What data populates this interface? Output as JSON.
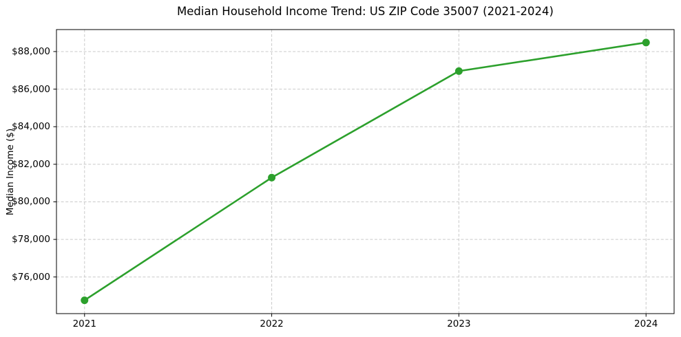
{
  "chart_data": {
    "type": "line",
    "title": "Median Household Income Trend: US ZIP Code 35007 (2021-2024)",
    "xlabel": "",
    "ylabel": "Median Income ($)",
    "x": [
      2021,
      2022,
      2023,
      2024
    ],
    "x_tick_labels": [
      "2021",
      "2022",
      "2023",
      "2024"
    ],
    "series": [
      {
        "name": "Median household income",
        "values": [
          74760,
          81290,
          86960,
          88480
        ]
      }
    ],
    "y_ticks": [
      76000,
      78000,
      80000,
      82000,
      84000,
      86000,
      88000
    ],
    "y_tick_labels": [
      "$76,000",
      "$78,000",
      "$80,000",
      "$82,000",
      "$84,000",
      "$86,000",
      "$88,000"
    ],
    "xlim": [
      2020.85,
      2024.15
    ],
    "ylim": [
      74050,
      89170
    ],
    "grid": true,
    "grid_style": "dashed",
    "legend": "none",
    "colors": {
      "line": "#2ca02c",
      "marker": "#2ca02c",
      "grid": "#c9c9c9",
      "frame": "#000000",
      "text": "#000000",
      "background": "#ffffff"
    }
  }
}
